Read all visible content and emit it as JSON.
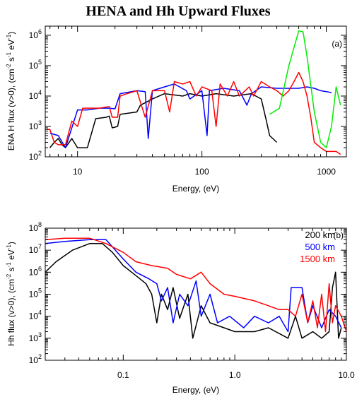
{
  "figure_title": "HENA and Hh Upward Fluxes",
  "chart_data": [
    {
      "type": "line",
      "panel_label": "(a)",
      "xlabel": "Energy, (eV)",
      "ylabel": "ENA H flux (v>0), (cm-2 s-1 eV-1)",
      "ylabel_parts": [
        "ENA H flux (v>0), (cm",
        "-2",
        " s",
        "-1",
        " eV",
        "-1",
        ")"
      ],
      "xscale": "log",
      "yscale": "log",
      "xlim": [
        5.5,
        1450
      ],
      "ylim": [
        100,
        2000000
      ],
      "x_ticks": [
        10,
        100,
        1000
      ],
      "x_tick_labels": [
        "10",
        "100",
        "1000"
      ],
      "y_ticks": [
        100,
        1000,
        10000,
        100000,
        1000000
      ],
      "y_tick_labels": [
        [
          "10",
          "2"
        ],
        [
          "10",
          "3"
        ],
        [
          "10",
          "4"
        ],
        [
          "10",
          "5"
        ],
        [
          "10",
          "6"
        ]
      ],
      "series": [
        {
          "color": "#000000",
          "points": [
            [
              6,
              200
            ],
            [
              6.5,
              300
            ],
            [
              7,
              400
            ],
            [
              7.5,
              250
            ],
            [
              8,
              200
            ],
            [
              9,
              400
            ],
            [
              10,
              200
            ],
            [
              12,
              200
            ],
            [
              14,
              1800
            ],
            [
              17,
              2000
            ],
            [
              18,
              2200
            ],
            [
              19,
              900
            ],
            [
              21,
              1000
            ],
            [
              22,
              2500
            ],
            [
              30,
              3000
            ],
            [
              32,
              5000
            ],
            [
              40,
              8000
            ],
            [
              50,
              12000
            ],
            [
              70,
              10000
            ],
            [
              80,
              12000
            ],
            [
              100,
              10000
            ],
            [
              130,
              12000
            ],
            [
              180,
              10000
            ],
            [
              250,
              12000
            ],
            [
              300,
              8000
            ],
            [
              330,
              1500
            ],
            [
              350,
              500
            ],
            [
              400,
              300
            ]
          ]
        },
        {
          "color": "#0000ff",
          "points": [
            [
              6,
              600
            ],
            [
              7,
              500
            ],
            [
              8,
              200
            ],
            [
              10,
              3500
            ],
            [
              12,
              3500
            ],
            [
              15,
              4000
            ],
            [
              18,
              4000
            ],
            [
              20,
              3800
            ],
            [
              22,
              12000
            ],
            [
              30,
              15000
            ],
            [
              35,
              14000
            ],
            [
              37,
              400
            ],
            [
              40,
              15000
            ],
            [
              50,
              20000
            ],
            [
              60,
              25000
            ],
            [
              75,
              15000
            ],
            [
              80,
              8000
            ],
            [
              100,
              15000
            ],
            [
              110,
              500
            ],
            [
              115,
              15000
            ],
            [
              150,
              18000
            ],
            [
              200,
              15000
            ],
            [
              230,
              5000
            ],
            [
              250,
              12000
            ],
            [
              300,
              20000
            ],
            [
              400,
              18000
            ],
            [
              500,
              18000
            ],
            [
              600,
              18000
            ],
            [
              700,
              20000
            ],
            [
              800,
              18000
            ],
            [
              900,
              15000
            ],
            [
              1000,
              14000
            ],
            [
              1100,
              13000
            ]
          ]
        },
        {
          "color": "#ff0000",
          "points": [
            [
              5.7,
              800
            ],
            [
              6,
              800
            ],
            [
              6.5,
              300
            ],
            [
              7,
              250
            ],
            [
              8,
              250
            ],
            [
              9,
              1500
            ],
            [
              10,
              1000
            ],
            [
              11,
              4000
            ],
            [
              15,
              4000
            ],
            [
              18,
              4500
            ],
            [
              19,
              2000
            ],
            [
              21,
              2000
            ],
            [
              22,
              10000
            ],
            [
              25,
              12000
            ],
            [
              30,
              15000
            ],
            [
              35,
              2000
            ],
            [
              40,
              15000
            ],
            [
              50,
              15000
            ],
            [
              55,
              3000
            ],
            [
              60,
              30000
            ],
            [
              70,
              25000
            ],
            [
              80,
              30000
            ],
            [
              90,
              10000
            ],
            [
              100,
              20000
            ],
            [
              120,
              15000
            ],
            [
              130,
              1000
            ],
            [
              140,
              25000
            ],
            [
              160,
              10000
            ],
            [
              180,
              30000
            ],
            [
              200,
              10000
            ],
            [
              240,
              20000
            ],
            [
              260,
              10000
            ],
            [
              300,
              30000
            ],
            [
              350,
              20000
            ],
            [
              400,
              15000
            ],
            [
              450,
              10000
            ],
            [
              500,
              15000
            ],
            [
              550,
              30000
            ],
            [
              600,
              60000
            ],
            [
              650,
              30000
            ],
            [
              700,
              10000
            ],
            [
              750,
              2000
            ],
            [
              800,
              300
            ],
            [
              900,
              200
            ],
            [
              1000,
              150
            ],
            [
              1200,
              150
            ],
            [
              1300,
              120
            ]
          ]
        },
        {
          "color": "#00ee00",
          "points": [
            [
              350,
              2500
            ],
            [
              420,
              4000
            ],
            [
              500,
              100000
            ],
            [
              600,
              1400000
            ],
            [
              650,
              1300000
            ],
            [
              700,
              200000
            ],
            [
              800,
              3000
            ],
            [
              900,
              300
            ],
            [
              1000,
              200
            ],
            [
              1100,
              1000
            ],
            [
              1200,
              20000
            ],
            [
              1300,
              5000
            ]
          ]
        }
      ]
    },
    {
      "type": "line",
      "panel_label": "(b)",
      "xlabel": "Energy, (eV)",
      "ylabel": "Hh flux (v>0), (cm-2 s-1 eV-1)",
      "ylabel_parts": [
        "Hh flux (v>0), (cm",
        "-2",
        " s",
        "-1",
        " eV",
        "-1",
        ")"
      ],
      "xscale": "log",
      "yscale": "log",
      "xlim": [
        0.02,
        10
      ],
      "ylim": [
        100,
        100000000
      ],
      "x_ticks": [
        0.1,
        1,
        10
      ],
      "x_tick_labels": [
        "0.1",
        "1.0",
        "10.0"
      ],
      "y_ticks": [
        100,
        1000,
        10000,
        100000,
        1000000,
        10000000,
        100000000
      ],
      "y_tick_labels": [
        [
          "10",
          "2"
        ],
        [
          "10",
          "3"
        ],
        [
          "10",
          "4"
        ],
        [
          "10",
          "5"
        ],
        [
          "10",
          "6"
        ],
        [
          "10",
          "7"
        ],
        [
          "10",
          "8"
        ]
      ],
      "legend": {
        "position": "top-right",
        "entries": [
          {
            "name": "200 km",
            "color": "#000000"
          },
          {
            "name": "500 km",
            "color": "#0000ff"
          },
          {
            "name": "1500 km",
            "color": "#ff0000"
          }
        ]
      },
      "series": [
        {
          "name": "200 km",
          "color": "#000000",
          "points": [
            [
              0.02,
              1000000
            ],
            [
              0.025,
              3000000
            ],
            [
              0.035,
              10000000
            ],
            [
              0.05,
              20000000
            ],
            [
              0.065,
              20000000
            ],
            [
              0.08,
              8000000
            ],
            [
              0.1,
              2000000
            ],
            [
              0.13,
              700000
            ],
            [
              0.16,
              300000
            ],
            [
              0.18,
              100000
            ],
            [
              0.2,
              5000
            ],
            [
              0.22,
              100000
            ],
            [
              0.25,
              20000
            ],
            [
              0.28,
              200000
            ],
            [
              0.32,
              8000
            ],
            [
              0.38,
              100000
            ],
            [
              0.42,
              1000
            ],
            [
              0.5,
              30000
            ],
            [
              0.6,
              5000
            ],
            [
              0.8,
              3000
            ],
            [
              1,
              2000
            ],
            [
              1.5,
              2000
            ],
            [
              2,
              3000
            ],
            [
              3,
              1000
            ],
            [
              3.5,
              10000
            ],
            [
              4,
              1000
            ],
            [
              5,
              2000
            ],
            [
              6,
              1000
            ],
            [
              7,
              2000
            ],
            [
              7.5,
              200000
            ],
            [
              8,
              1000000
            ],
            [
              8.5,
              1000
            ],
            [
              9,
              3000
            ]
          ]
        },
        {
          "name": "500 km",
          "color": "#0000ff",
          "points": [
            [
              0.02,
              20000000
            ],
            [
              0.03,
              25000000
            ],
            [
              0.05,
              30000000
            ],
            [
              0.07,
              30000000
            ],
            [
              0.1,
              4000000
            ],
            [
              0.13,
              1000000
            ],
            [
              0.17,
              500000
            ],
            [
              0.2,
              300000
            ],
            [
              0.22,
              50000
            ],
            [
              0.25,
              200000
            ],
            [
              0.28,
              5000
            ],
            [
              0.32,
              100000
            ],
            [
              0.38,
              30000
            ],
            [
              0.45,
              400000
            ],
            [
              0.5,
              10000
            ],
            [
              0.6,
              100000
            ],
            [
              0.7,
              5000
            ],
            [
              0.9,
              10000
            ],
            [
              1.2,
              3000
            ],
            [
              1.5,
              10000
            ],
            [
              2,
              5000
            ],
            [
              2.5,
              10000
            ],
            [
              3,
              2000
            ],
            [
              3.2,
              200000
            ],
            [
              4,
              200000
            ],
            [
              4.5,
              5000
            ],
            [
              5,
              30000
            ],
            [
              6,
              3000
            ],
            [
              7,
              20000
            ],
            [
              8,
              10000
            ],
            [
              9,
              3000
            ]
          ]
        },
        {
          "name": "1500 km",
          "color": "#ff0000",
          "points": [
            [
              0.02,
              30000000
            ],
            [
              0.03,
              35000000
            ],
            [
              0.05,
              35000000
            ],
            [
              0.07,
              20000000
            ],
            [
              0.1,
              8000000
            ],
            [
              0.13,
              3000000
            ],
            [
              0.18,
              2000000
            ],
            [
              0.25,
              1500000
            ],
            [
              0.3,
              800000
            ],
            [
              0.4,
              500000
            ],
            [
              0.5,
              1000000
            ],
            [
              0.6,
              300000
            ],
            [
              0.8,
              100000
            ],
            [
              1,
              80000
            ],
            [
              1.5,
              50000
            ],
            [
              2,
              30000
            ],
            [
              2.5,
              20000
            ],
            [
              3,
              20000
            ],
            [
              3.5,
              10000
            ],
            [
              4,
              100000
            ],
            [
              4.5,
              5000
            ],
            [
              5,
              50000
            ],
            [
              5.5,
              3000
            ],
            [
              6,
              100000
            ],
            [
              6.5,
              2000
            ],
            [
              7,
              300000
            ],
            [
              7.5,
              5000
            ],
            [
              8,
              30000
            ],
            [
              9,
              10000
            ],
            [
              10,
              2000
            ]
          ]
        }
      ]
    }
  ]
}
